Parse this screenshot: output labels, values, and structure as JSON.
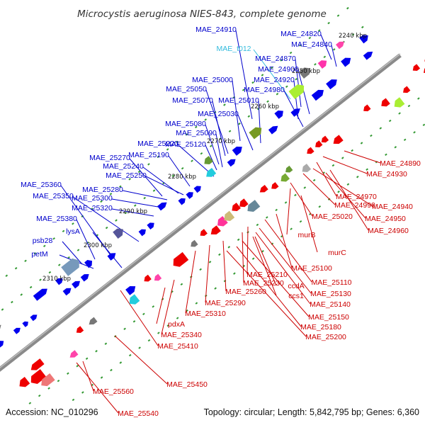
{
  "title": "Microcystis aeruginosa NIES-843, complete genome",
  "footer": {
    "accession": "Accession: NC_010296",
    "summary": "Topology: circular; Length: 5,842,795 bp; Genes: 6,360"
  },
  "colors": {
    "backbone": "#8a8a8a",
    "forward_label": "#0000cc",
    "reverse_label": "#cc0000",
    "trna_label": "#33bbdd",
    "tick": "#339933"
  },
  "kbp_ticks": [
    "2240 kbp",
    "2250 kbp",
    "2260 kbp",
    "2270 kbp",
    "2280 kbp",
    "2290 kbp",
    "2300 kbp",
    "2310 kbp"
  ],
  "forward_labels": [
    "MAE_24910",
    "MAE_24820",
    "MAE_24840",
    "MAE_t012",
    "MAE_24870",
    "MAE_24900",
    "MAE_25000",
    "MAE_24920",
    "MAE_25050",
    "MAE_24980",
    "MAE_25070",
    "MAE_25010",
    "MAE_25030",
    "MAE_25080",
    "MAE_25090",
    "MAE_25220",
    "MAE_25120",
    "MAE_25190",
    "MAE_25270",
    "MAE_25240",
    "MAE_25250",
    "MAE_25360",
    "MAE_25280",
    "MAE_25350",
    "MAE_25300",
    "MAE_25320",
    "MAE_25380",
    "lysA",
    "psb28",
    "petM"
  ],
  "reverse_labels": [
    "MAE_24890",
    "MAE_24930",
    "MAE_24970",
    "MAE_24990",
    "MAE_24940",
    "MAE_25020",
    "MAE_24950",
    "MAE_24960",
    "murB",
    "murC",
    "MAE_25100",
    "MAE_25210",
    "MAE_25110",
    "MAE_25230",
    "ccdA",
    "MAE_25130",
    "MAE_25260",
    "ccs1",
    "MAE_25140",
    "MAE_25290",
    "MAE_25150",
    "MAE_25310",
    "MAE_25180",
    "pdxA",
    "MAE_25200",
    "MAE_25340",
    "MAE_25410",
    "MAE_25450",
    "MAE_25560",
    "MAE_25540"
  ]
}
